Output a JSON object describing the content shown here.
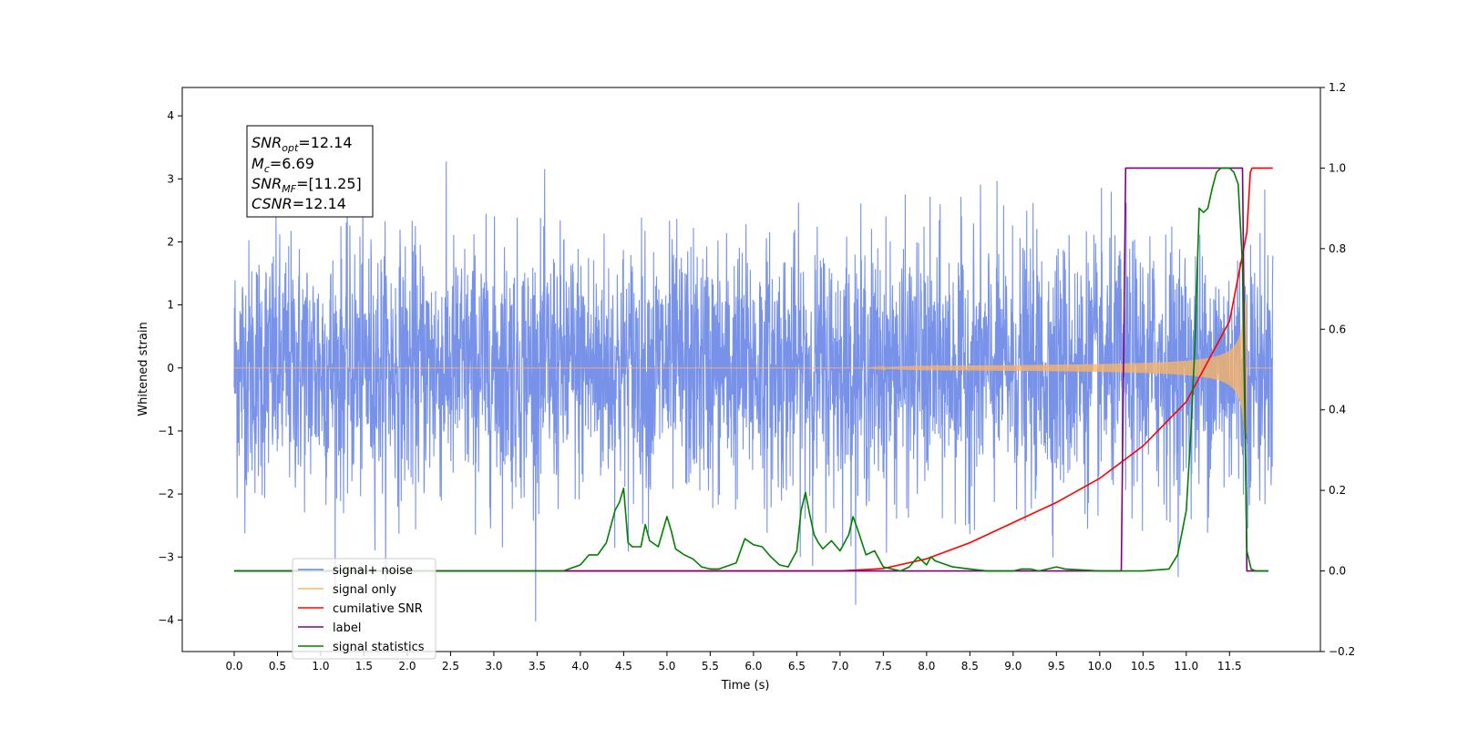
{
  "chart_data": {
    "type": "line",
    "xlabel": "Time (s)",
    "ylabel": "Whitened strain",
    "xlim": [
      -0.6,
      12.55
    ],
    "ylim": [
      -4.5,
      4.45
    ],
    "y2lim": [
      -0.2,
      1.2
    ],
    "x_ticks": [
      "0.0",
      "0.5",
      "1.0",
      "1.5",
      "2.0",
      "2.5",
      "3.0",
      "3.5",
      "4.0",
      "4.5",
      "5.0",
      "5.5",
      "6.0",
      "6.5",
      "7.0",
      "7.5",
      "8.0",
      "8.5",
      "9.0",
      "9.5",
      "10.0",
      "10.5",
      "11.0",
      "11.5"
    ],
    "y_ticks": [
      "4",
      "3",
      "2",
      "1",
      "0",
      "−1",
      "−2",
      "−3",
      "−4"
    ],
    "y2_ticks": [
      "1.2",
      "1.0",
      "0.8",
      "0.6",
      "0.4",
      "0.2",
      "0.0",
      "−0.2"
    ],
    "annotation": {
      "snr_opt": "=12.14",
      "mc": "=6.69",
      "snr_mf": "=[11.25]",
      "csnr": "=12.14"
    },
    "legend_position": "bottom-left",
    "series": [
      {
        "name": "signal+ noise",
        "color": "#6b89e6",
        "axis": "left",
        "description": "noise band roughly ±2.5 with peaks up to ±4 across 0–12 s"
      },
      {
        "name": "signal only",
        "color": "#fdb462",
        "axis": "left",
        "chirp_start": 7.3,
        "merger": 11.7,
        "peak_amplitude": 1.05
      },
      {
        "name": "cumilative SNR",
        "color": "#ff0000",
        "axis": "right",
        "x": [
          0,
          7.0,
          7.5,
          8.0,
          8.5,
          9.0,
          9.5,
          10.0,
          10.5,
          11.0,
          11.5,
          11.7,
          11.74,
          11.76,
          12.0
        ],
        "y": [
          0,
          0,
          0.006,
          0.03,
          0.07,
          0.12,
          0.17,
          0.23,
          0.31,
          0.42,
          0.62,
          0.84,
          0.99,
          1.0,
          1.0
        ]
      },
      {
        "name": "label",
        "color": "#800080",
        "axis": "right",
        "x": [
          0,
          10.25,
          10.3,
          11.65,
          11.7,
          11.95
        ],
        "y": [
          0,
          0,
          1.0,
          1.0,
          0,
          0
        ]
      },
      {
        "name": "signal statistics",
        "color": "#008000",
        "axis": "right",
        "x": [
          0,
          3.8,
          4.0,
          4.1,
          4.2,
          4.3,
          4.4,
          4.45,
          4.5,
          4.55,
          4.6,
          4.7,
          4.75,
          4.8,
          4.9,
          5.0,
          5.05,
          5.1,
          5.2,
          5.3,
          5.4,
          5.5,
          5.6,
          5.8,
          5.9,
          6.0,
          6.1,
          6.2,
          6.3,
          6.4,
          6.5,
          6.55,
          6.6,
          6.65,
          6.7,
          6.75,
          6.8,
          6.9,
          7.0,
          7.1,
          7.15,
          7.2,
          7.3,
          7.4,
          7.5,
          7.6,
          7.7,
          7.8,
          7.9,
          7.95,
          8.0,
          8.05,
          8.1,
          8.3,
          8.5,
          8.7,
          9.0,
          9.1,
          9.2,
          9.3,
          9.4,
          9.5,
          9.6,
          10.0,
          10.5,
          10.8,
          10.9,
          11.0,
          11.05,
          11.1,
          11.15,
          11.2,
          11.25,
          11.3,
          11.35,
          11.4,
          11.5,
          11.55,
          11.6,
          11.65,
          11.7,
          11.75,
          11.8,
          11.95
        ],
        "y": [
          0,
          0,
          0.015,
          0.04,
          0.04,
          0.07,
          0.15,
          0.17,
          0.205,
          0.07,
          0.06,
          0.06,
          0.115,
          0.075,
          0.06,
          0.135,
          0.1,
          0.055,
          0.04,
          0.03,
          0.01,
          0.005,
          0.005,
          0.02,
          0.08,
          0.065,
          0.06,
          0.035,
          0.015,
          0.01,
          0.05,
          0.15,
          0.195,
          0.14,
          0.09,
          0.07,
          0.055,
          0.075,
          0.05,
          0.09,
          0.135,
          0.105,
          0.04,
          0.05,
          0.01,
          0.005,
          0,
          0.01,
          0.035,
          0.025,
          0.015,
          0.035,
          0.025,
          0.01,
          0.005,
          0,
          0,
          0.005,
          0.005,
          0,
          0.005,
          0.01,
          0.005,
          0,
          0,
          0.005,
          0.04,
          0.15,
          0.33,
          0.56,
          0.9,
          0.89,
          0.9,
          0.95,
          0.99,
          1.0,
          1.0,
          0.99,
          0.96,
          0.76,
          0.05,
          0.005,
          0,
          0
        ]
      }
    ]
  }
}
